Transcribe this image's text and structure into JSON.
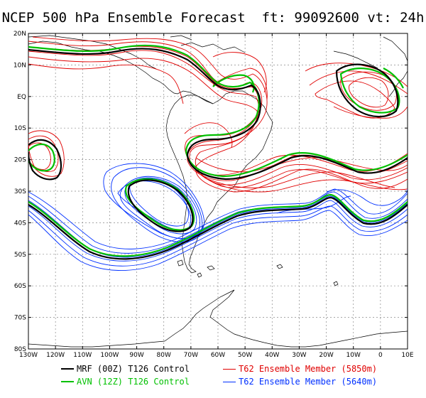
{
  "title": "NCEP 500 hPa Ensemble Forecast  ft: 99092600 vt: 24h",
  "lat_labels": [
    "20N",
    "10N",
    "EQ",
    "10S",
    "20S",
    "30S",
    "40S",
    "50S",
    "60S",
    "70S",
    "80S"
  ],
  "lon_labels": [
    "130W",
    "120W",
    "110W",
    "100W",
    "90W",
    "80W",
    "70W",
    "60W",
    "50W",
    "40W",
    "30W",
    "20W",
    "10W",
    "0",
    "10E"
  ],
  "legend": {
    "mrf": {
      "label": "MRF (00Z) T126 Control",
      "color": "#000000"
    },
    "avn": {
      "label": "AVN (12Z) T126 Control",
      "color": "#00c000"
    },
    "t62_red": {
      "label": "T62 Ensemble Member (5850m)",
      "color": "#e00000"
    },
    "t62_blue": {
      "label": "T62 Ensemble Member (5640m)",
      "color": "#0030ff"
    }
  },
  "map": {
    "lon_range": [
      -130,
      10
    ],
    "lat_range": [
      -80,
      20
    ],
    "grid": true,
    "contour_levels_m": [
      5640,
      5850
    ]
  }
}
